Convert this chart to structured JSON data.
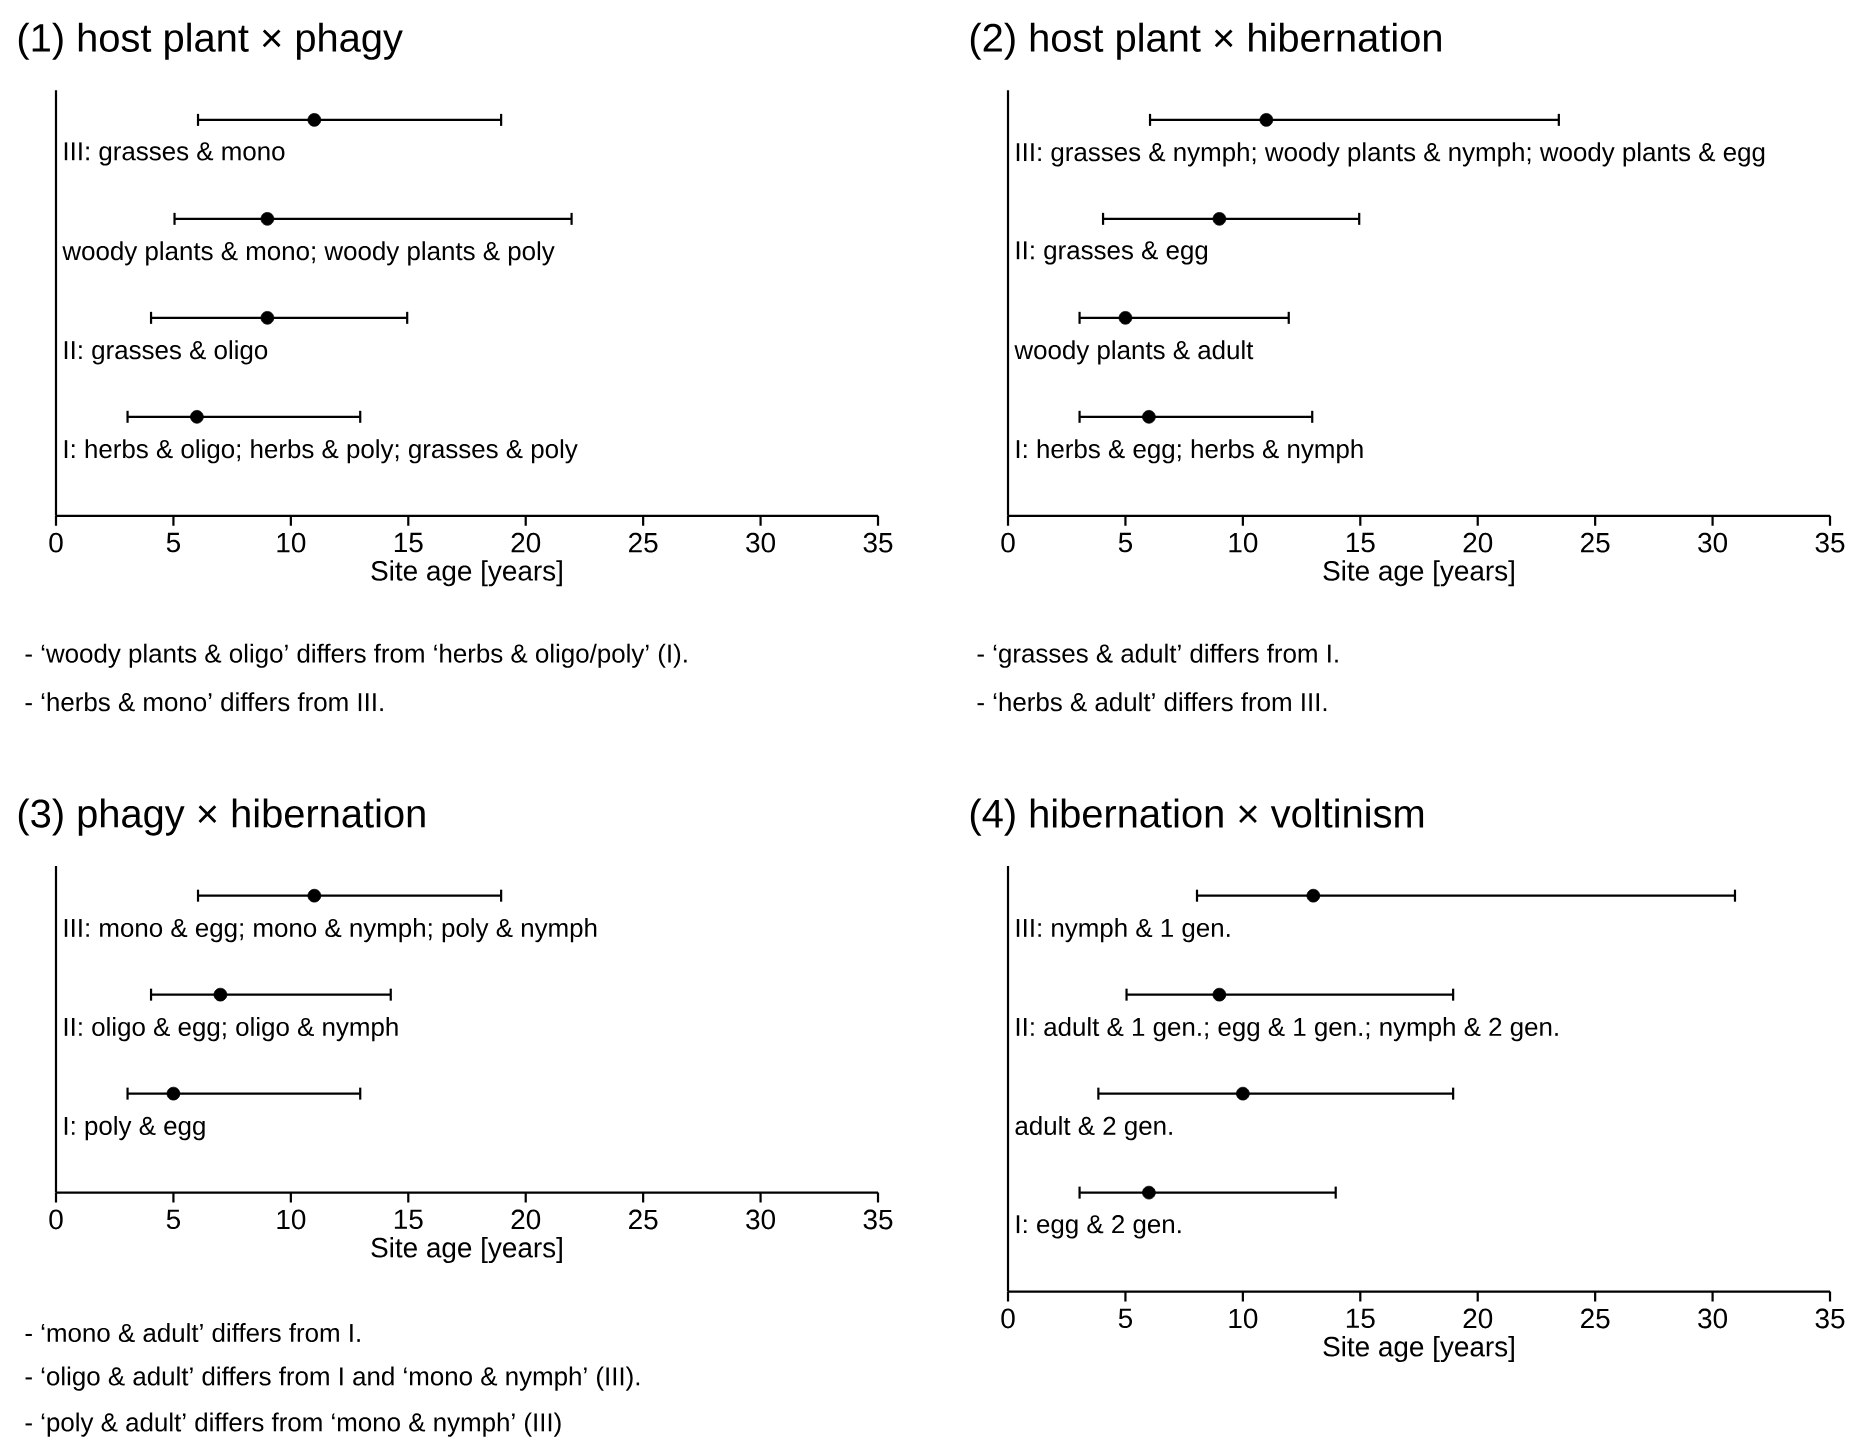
{
  "chart_data": [
    {
      "type": "scatter",
      "orientation": "horizontal",
      "title": "(1) host plant × phagy",
      "xlabel": "Site age [years]",
      "color": "#000000",
      "marker": "circle",
      "xlim": [
        0,
        35
      ],
      "xticks": [
        0,
        5,
        10,
        15,
        20,
        25,
        30,
        35
      ],
      "categories": [
        "III: grasses & mono",
        "woody plants & mono; woody plants & poly",
        "II: grasses & oligo",
        "I: herbs & oligo; herbs & poly; grasses & poly"
      ],
      "values": [
        11,
        9,
        9,
        6
      ],
      "errors": [
        [
          6,
          19
        ],
        [
          5,
          22
        ],
        [
          4,
          15
        ],
        [
          3,
          13
        ]
      ],
      "annotations": [
        "-  ‘woody plants & oligo’ differs from ‘herbs & oligo/poly’ (I).",
        "-  ‘herbs & mono’ differs from III."
      ]
    },
    {
      "type": "scatter",
      "orientation": "horizontal",
      "title": "(2) host plant × hibernation",
      "xlabel": "Site age [years]",
      "color": "#000000",
      "marker": "circle",
      "xlim": [
        0,
        35
      ],
      "xticks": [
        0,
        5,
        10,
        15,
        20,
        25,
        30,
        35
      ],
      "categories": [
        "III: grasses & nymph; woody plants & nymph; woody plants & egg",
        "II: grasses & egg",
        "woody plants & adult",
        "I: herbs & egg; herbs & nymph"
      ],
      "values": [
        11,
        9,
        5,
        6
      ],
      "errors": [
        [
          6,
          23.5
        ],
        [
          4,
          15
        ],
        [
          3,
          12
        ],
        [
          3,
          13
        ]
      ],
      "annotations": [
        "-  ‘grasses & adult’ differs from I.",
        "-  ‘herbs & adult’ differs from III."
      ]
    },
    {
      "type": "scatter",
      "orientation": "horizontal",
      "title": "(3) phagy × hibernation",
      "xlabel": "Site age [years]",
      "color": "#000000",
      "marker": "circle",
      "xlim": [
        0,
        35
      ],
      "xticks": [
        0,
        5,
        10,
        15,
        20,
        25,
        30,
        35
      ],
      "categories": [
        "III: mono & egg; mono & nymph; poly & nymph",
        "II: oligo & egg; oligo & nymph",
        "I: poly & egg"
      ],
      "values": [
        11,
        7,
        5
      ],
      "errors": [
        [
          6,
          19
        ],
        [
          4,
          14.3
        ],
        [
          3,
          13
        ]
      ],
      "annotations": [
        "-  ‘mono & adult’ differs from I.",
        "-  ‘oligo & adult’ differs from I and ‘mono & nymph’ (III).",
        "-  ‘poly & adult’ differs from ‘mono & nymph’ (III)"
      ]
    },
    {
      "type": "scatter",
      "orientation": "horizontal",
      "title": "(4) hibernation × voltinism",
      "xlabel": "Site age [years]",
      "color": "#000000",
      "marker": "circle",
      "xlim": [
        0,
        35
      ],
      "xticks": [
        0,
        5,
        10,
        15,
        20,
        25,
        30,
        35
      ],
      "categories": [
        "III: nymph & 1 gen.",
        "II: adult & 1 gen.; egg & 1 gen.; nymph & 2 gen.",
        "adult & 2 gen.",
        "I: egg & 2 gen."
      ],
      "values": [
        13,
        9,
        10,
        6
      ],
      "errors": [
        [
          8,
          31
        ],
        [
          5,
          19
        ],
        [
          3.8,
          19
        ],
        [
          3,
          14
        ]
      ]
    }
  ]
}
